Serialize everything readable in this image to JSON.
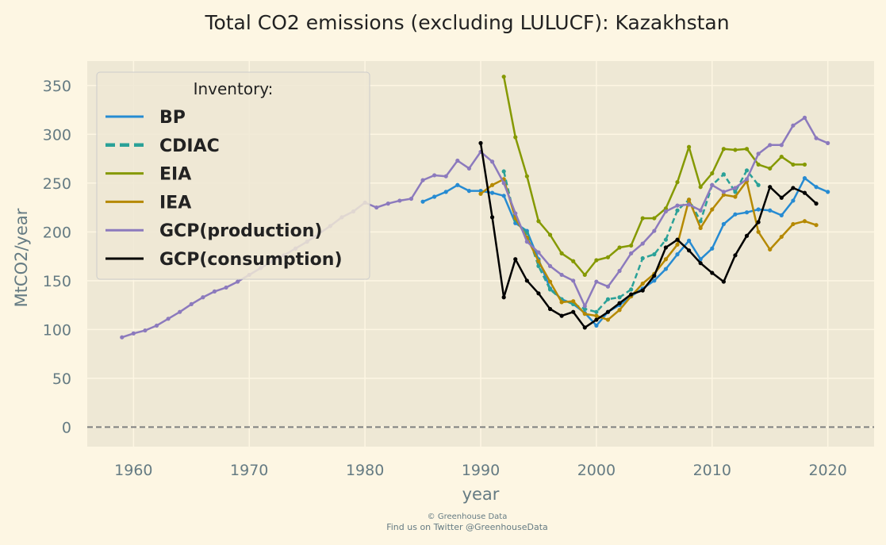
{
  "chart_data": {
    "type": "line",
    "title": "Total CO2 emissions (excluding LULUCF): Kazakhstan",
    "xlabel": "year",
    "ylabel": "MtCO2/year",
    "xlim": [
      1956,
      2024
    ],
    "ylim": [
      -20,
      375
    ],
    "xticks": [
      1960,
      1970,
      1980,
      1990,
      2000,
      2010,
      2020
    ],
    "yticks": [
      0,
      50,
      100,
      150,
      200,
      250,
      300,
      350
    ],
    "grid": true,
    "reference_line": 0,
    "legend": {
      "title": "Inventory:",
      "placement": "top-left"
    },
    "series": [
      {
        "name": "BP",
        "color": "#268bd2",
        "style": "solid",
        "x": [
          1985,
          1986,
          1987,
          1988,
          1989,
          1990,
          1991,
          1992,
          1993,
          1994,
          1995,
          1996,
          1997,
          1998,
          1999,
          2000,
          2001,
          2002,
          2003,
          2004,
          2005,
          2006,
          2007,
          2008,
          2009,
          2010,
          2011,
          2012,
          2013,
          2014,
          2015,
          2016,
          2017,
          2018,
          2019,
          2020
        ],
        "values": [
          231,
          236,
          241,
          248,
          242,
          242,
          240,
          237,
          209,
          201,
          172,
          142,
          131,
          126,
          117,
          104,
          118,
          125,
          134,
          142,
          150,
          162,
          177,
          191,
          172,
          183,
          208,
          218,
          220,
          223,
          222,
          217,
          232,
          255,
          246,
          241
        ]
      },
      {
        "name": "CDIAC",
        "color": "#2aa198",
        "style": "dashed",
        "x": [
          1992,
          1993,
          1994,
          1995,
          1996,
          1997,
          1998,
          1999,
          2000,
          2001,
          2002,
          2003,
          2004,
          2005,
          2006,
          2007,
          2008,
          2009,
          2010,
          2011,
          2012,
          2013,
          2014
        ],
        "values": [
          262,
          212,
          199,
          165,
          141,
          131,
          126,
          121,
          118,
          131,
          133,
          141,
          173,
          177,
          192,
          222,
          233,
          211,
          248,
          259,
          241,
          263,
          248
        ]
      },
      {
        "name": "EIA",
        "color": "#859900",
        "style": "solid",
        "x": [
          1992,
          1993,
          1994,
          1995,
          1996,
          1997,
          1998,
          1999,
          2000,
          2001,
          2002,
          2003,
          2004,
          2005,
          2006,
          2007,
          2008,
          2009,
          2010,
          2011,
          2012,
          2013,
          2014,
          2015,
          2016,
          2017,
          2018
        ],
        "values": [
          359,
          297,
          257,
          211,
          197,
          178,
          170,
          156,
          171,
          174,
          184,
          186,
          214,
          214,
          224,
          251,
          287,
          246,
          260,
          285,
          284,
          285,
          269,
          265,
          277,
          269,
          269
        ]
      },
      {
        "name": "IEA",
        "color": "#b58900",
        "style": "solid",
        "x": [
          1990,
          1991,
          1992,
          1993,
          1994,
          1995,
          1996,
          1997,
          1998,
          1999,
          2000,
          2001,
          2002,
          2003,
          2004,
          2005,
          2006,
          2007,
          2008,
          2009,
          2010,
          2011,
          2012,
          2013,
          2014,
          2015,
          2016,
          2017,
          2018,
          2019
        ],
        "values": [
          239,
          248,
          254,
          214,
          194,
          170,
          149,
          128,
          129,
          116,
          114,
          110,
          120,
          134,
          147,
          157,
          172,
          187,
          233,
          204,
          223,
          238,
          236,
          252,
          200,
          182,
          195,
          208,
          211,
          207
        ]
      },
      {
        "name": "GCP(production)",
        "color": "#8c7abd",
        "style": "solid",
        "x": [
          1959,
          1960,
          1961,
          1962,
          1963,
          1964,
          1965,
          1966,
          1967,
          1968,
          1969,
          1970,
          1971,
          1972,
          1973,
          1974,
          1975,
          1976,
          1977,
          1978,
          1979,
          1980,
          1981,
          1982,
          1983,
          1984,
          1985,
          1986,
          1987,
          1988,
          1989,
          1990,
          1991,
          1992,
          1993,
          1994,
          1995,
          1996,
          1997,
          1998,
          1999,
          2000,
          2001,
          2002,
          2003,
          2004,
          2005,
          2006,
          2007,
          2008,
          2009,
          2010,
          2011,
          2012,
          2013,
          2014,
          2015,
          2016,
          2017,
          2018,
          2019,
          2020
        ],
        "values": [
          92,
          96,
          99,
          104,
          111,
          118,
          126,
          133,
          139,
          143,
          149,
          156,
          163,
          170,
          176,
          183,
          190,
          198,
          206,
          215,
          221,
          230,
          225,
          229,
          232,
          234,
          253,
          258,
          257,
          273,
          265,
          282,
          272,
          250,
          219,
          190,
          179,
          165,
          156,
          150,
          124,
          149,
          144,
          160,
          178,
          188,
          201,
          221,
          227,
          228,
          222,
          248,
          241,
          245,
          254,
          280,
          289,
          289,
          309,
          317,
          296,
          291
        ]
      },
      {
        "name": "GCP(consumption)",
        "color": "#000000",
        "style": "solid",
        "x": [
          1990,
          1991,
          1992,
          1993,
          1994,
          1995,
          1996,
          1997,
          1998,
          1999,
          2000,
          2001,
          2002,
          2003,
          2004,
          2005,
          2006,
          2007,
          2008,
          2009,
          2010,
          2011,
          2012,
          2013,
          2014,
          2015,
          2016,
          2017,
          2018,
          2019
        ],
        "values": [
          291,
          215,
          133,
          172,
          150,
          137,
          121,
          114,
          118,
          102,
          110,
          118,
          127,
          136,
          140,
          155,
          184,
          192,
          181,
          168,
          158,
          149,
          176,
          196,
          210,
          246,
          235,
          245,
          240,
          229
        ]
      }
    ],
    "footer": [
      "© Greenhouse Data",
      "Find us on Twitter @GreenhouseData"
    ]
  }
}
